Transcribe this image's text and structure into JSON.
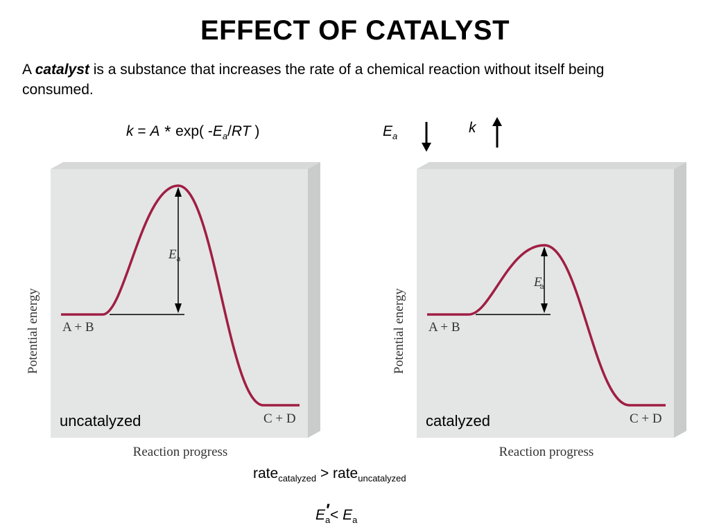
{
  "title": "EFFECT OF CATALYST",
  "intro": {
    "prefix": "A ",
    "term": "catalyst",
    "rest": " is a substance that increases the rate of a chemical reaction without itself being consumed."
  },
  "formula": {
    "k": "k",
    "eq": " = ",
    "a": "A",
    "star": " * ",
    "exp": "exp( -",
    "e": "E",
    "a_sub": "a",
    "slash": "/",
    "rt": "RT",
    "close": " )"
  },
  "trend": {
    "ea_label": "E",
    "ea_sub": "a",
    "ea_direction": "down-arrow",
    "k_label": "k",
    "k_direction": "up-arrow"
  },
  "left_panel": {
    "y_axis_label": "Potential energy",
    "x_axis_label": "Reaction progress",
    "reactants": "A + B",
    "products": "C + D",
    "barrier_label": "E",
    "barrier_sub": "a",
    "caption": "uncatalyzed"
  },
  "right_panel": {
    "y_axis_label": "Potential energy",
    "x_axis_label": "Reaction progress",
    "reactants": "A + B",
    "products": "C + D",
    "barrier_label": "E′",
    "barrier_sub": "a",
    "caption": "catalyzed"
  },
  "rate_comparison": {
    "rate1": "rate",
    "sub1": "catalyzed",
    "op": " > ",
    "rate2": "rate",
    "sub2": "uncatalyzed"
  },
  "ea_comparison": {
    "e1": "E",
    "sub1": "a",
    "prime": "′",
    "op": "< ",
    "e2": "E",
    "sub2": "a"
  },
  "colors": {
    "curve": "#a01e44",
    "panel_front": "#e3e6e4",
    "panel_side": "#c9ccca",
    "panel_top": "#d6d9d7"
  }
}
